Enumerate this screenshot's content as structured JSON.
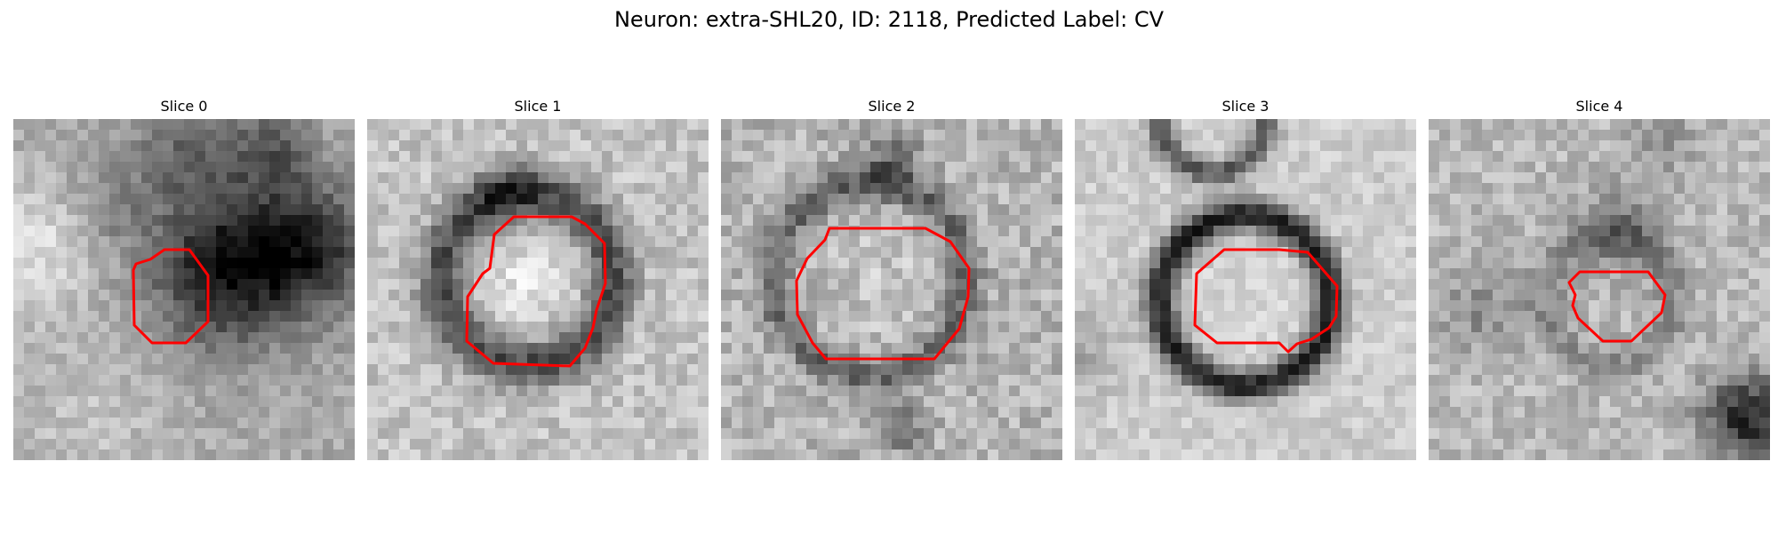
{
  "figure": {
    "title": "Neuron: extra-SHL20, ID: 2118, Predicted Label: CV",
    "colormap": "gray",
    "contour_color": "#ff0000",
    "panels": [
      {
        "title": "Slice 0",
        "seed": 11,
        "theme": "slice0"
      },
      {
        "title": "Slice 1",
        "seed": 23,
        "theme": "slice1"
      },
      {
        "title": "Slice 2",
        "seed": 37,
        "theme": "slice2"
      },
      {
        "title": "Slice 3",
        "seed": 51,
        "theme": "slice3"
      },
      {
        "title": "Slice 4",
        "seed": 67,
        "theme": "slice4"
      }
    ]
  }
}
